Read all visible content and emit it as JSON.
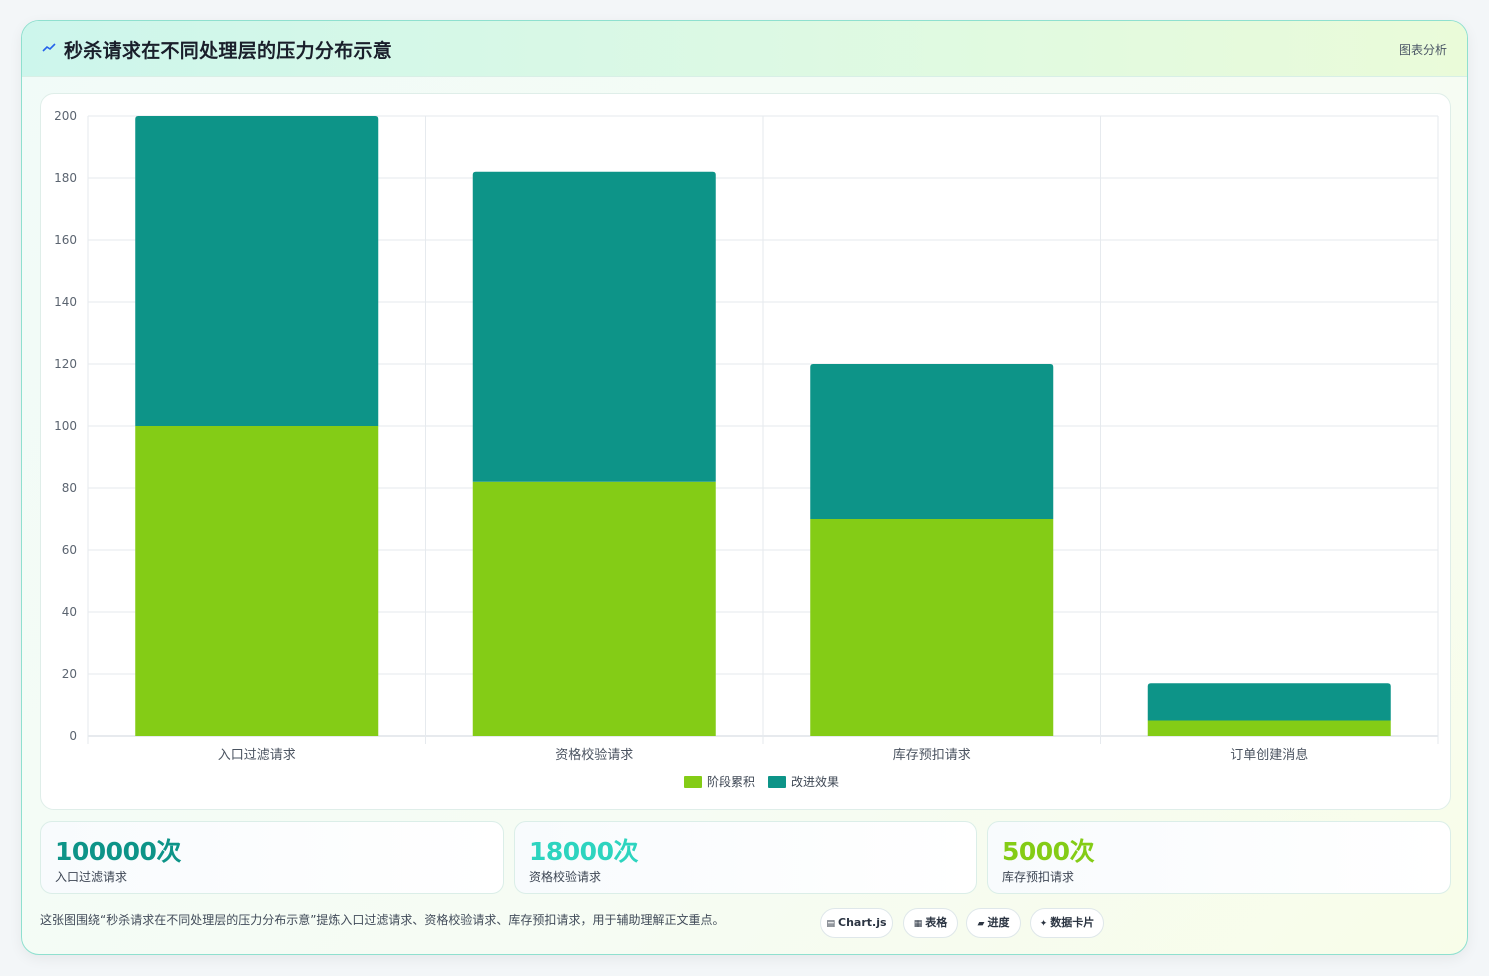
{
  "header": {
    "icon": "trend-icon",
    "title": "秒杀请求在不同处理层的压力分布示意",
    "link_label": "图表分析"
  },
  "chart_data": {
    "type": "bar",
    "stacked": true,
    "categories": [
      "入口过滤请求",
      "资格校验请求",
      "库存预扣请求",
      "订单创建消息"
    ],
    "series": [
      {
        "name": "阶段累积",
        "color": "#84cc16",
        "values": [
          100,
          82,
          70,
          5
        ]
      },
      {
        "name": "改进效果",
        "color": "#0d9488",
        "values": [
          100,
          100,
          50,
          12
        ]
      }
    ],
    "ylim": [
      0,
      200
    ],
    "yticks": [
      0,
      20,
      40,
      60,
      80,
      100,
      120,
      140,
      160,
      180,
      200
    ],
    "grid": true,
    "legend_position": "bottom",
    "title": "",
    "xlabel": "",
    "ylabel": ""
  },
  "stats": [
    {
      "value": "100000次",
      "label": "入口过滤请求",
      "color": "#0d9488"
    },
    {
      "value": "18000次",
      "label": "资格校验请求",
      "color": "#2dd4bf"
    },
    {
      "value": "5000次",
      "label": "库存预扣请求",
      "color": "#84cc16"
    }
  ],
  "note": "这张图围绕“秒杀请求在不同处理层的压力分布示意”提炼入口过滤请求、资格校验请求、库存预扣请求，用于辅助理解正文重点。",
  "tags": [
    {
      "icon": "▤",
      "label": "Chart.js"
    },
    {
      "icon": "▦",
      "label": "表格"
    },
    {
      "icon": "▰",
      "label": "进度"
    },
    {
      "icon": "✦",
      "label": "数据卡片"
    }
  ]
}
